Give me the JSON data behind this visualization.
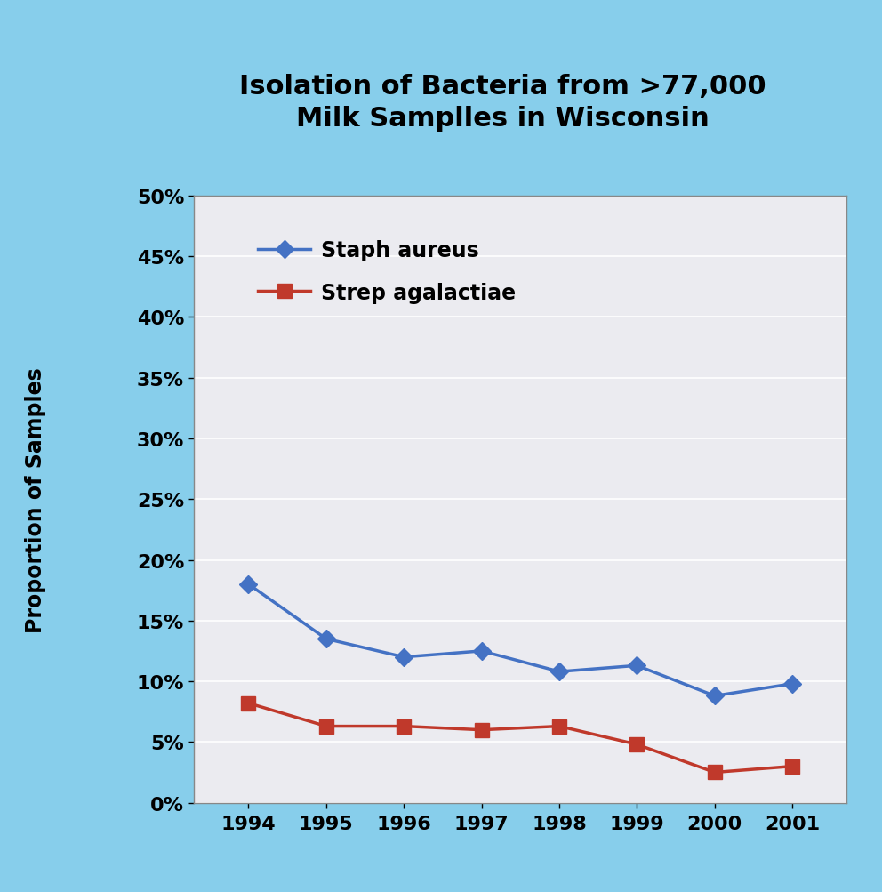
{
  "title_line1": "Isolation of Bacteria from >77,000",
  "title_line2": "Milk Samplles in Wisconsin",
  "ylabel": "Proportion of Samples",
  "years": [
    1994,
    1995,
    1996,
    1997,
    1998,
    1999,
    2000,
    2001
  ],
  "staph_aureus": [
    0.18,
    0.135,
    0.12,
    0.125,
    0.108,
    0.113,
    0.088,
    0.098
  ],
  "strep_agalactiae": [
    0.082,
    0.063,
    0.063,
    0.06,
    0.063,
    0.048,
    0.025,
    0.03
  ],
  "staph_color": "#4472C4",
  "strep_color": "#C0392B",
  "bg_outer": "#87CEEB",
  "bg_inner": "#EBEBF0",
  "ylim": [
    0,
    0.5
  ],
  "yticks": [
    0.0,
    0.05,
    0.1,
    0.15,
    0.2,
    0.25,
    0.3,
    0.35,
    0.4,
    0.45,
    0.5
  ],
  "ytick_labels": [
    "0%",
    "5%",
    "10%",
    "15%",
    "20%",
    "25%",
    "30%",
    "35%",
    "40%",
    "45%",
    "50%"
  ],
  "legend_staph": "Staph aureus",
  "legend_strep": "Strep agalactiae",
  "title_fontsize": 22,
  "axis_label_fontsize": 17,
  "tick_fontsize": 16,
  "legend_fontsize": 17
}
